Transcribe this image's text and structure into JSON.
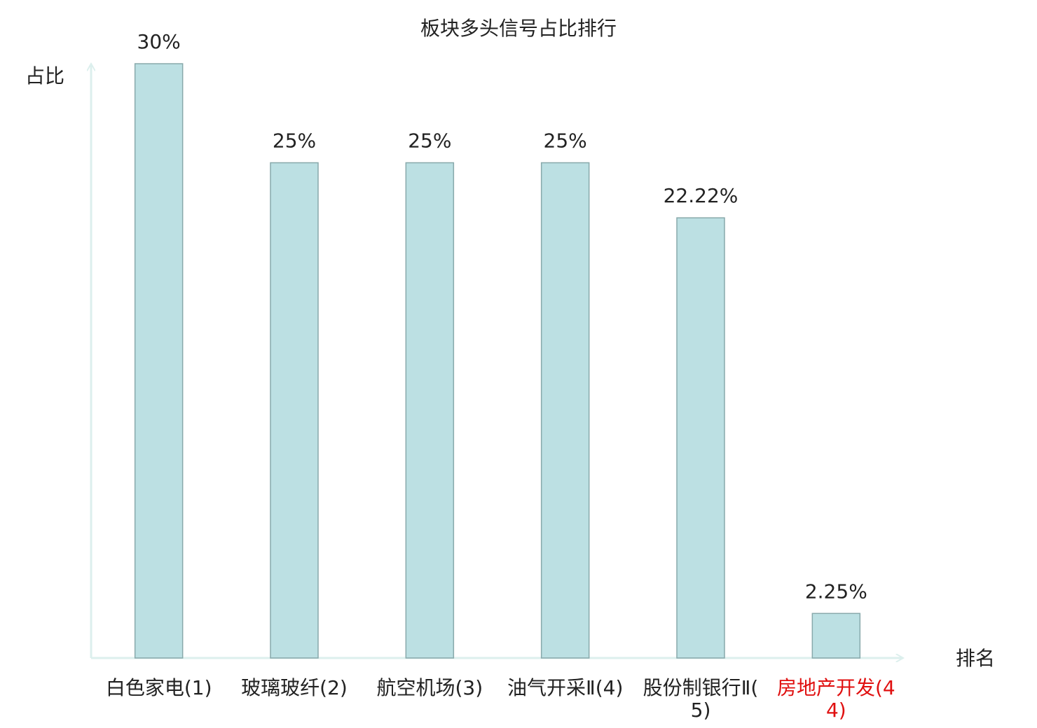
{
  "chart_data": {
    "type": "bar",
    "title": "板块多头信号占比排行",
    "categories": [
      "白色家电(1)",
      "玻璃玻纤(2)",
      "航空机场(3)",
      "油气开采Ⅱ(4)",
      "股份制银行Ⅱ(5)",
      "房地产开发(44)"
    ],
    "values": [
      30,
      25,
      25,
      25,
      22.22,
      2.25
    ],
    "value_labels": [
      "30%",
      "25%",
      "25%",
      "25%",
      "22.22%",
      "2.25%"
    ],
    "color": "#bce0e3",
    "edge_color": "#88a9ab",
    "label_colors": [
      "#222222",
      "#222222",
      "#222222",
      "#222222",
      "#222222",
      "#e01010"
    ],
    "y_label": "占比",
    "x_label": "排名",
    "ylim": [
      0,
      30
    ]
  }
}
